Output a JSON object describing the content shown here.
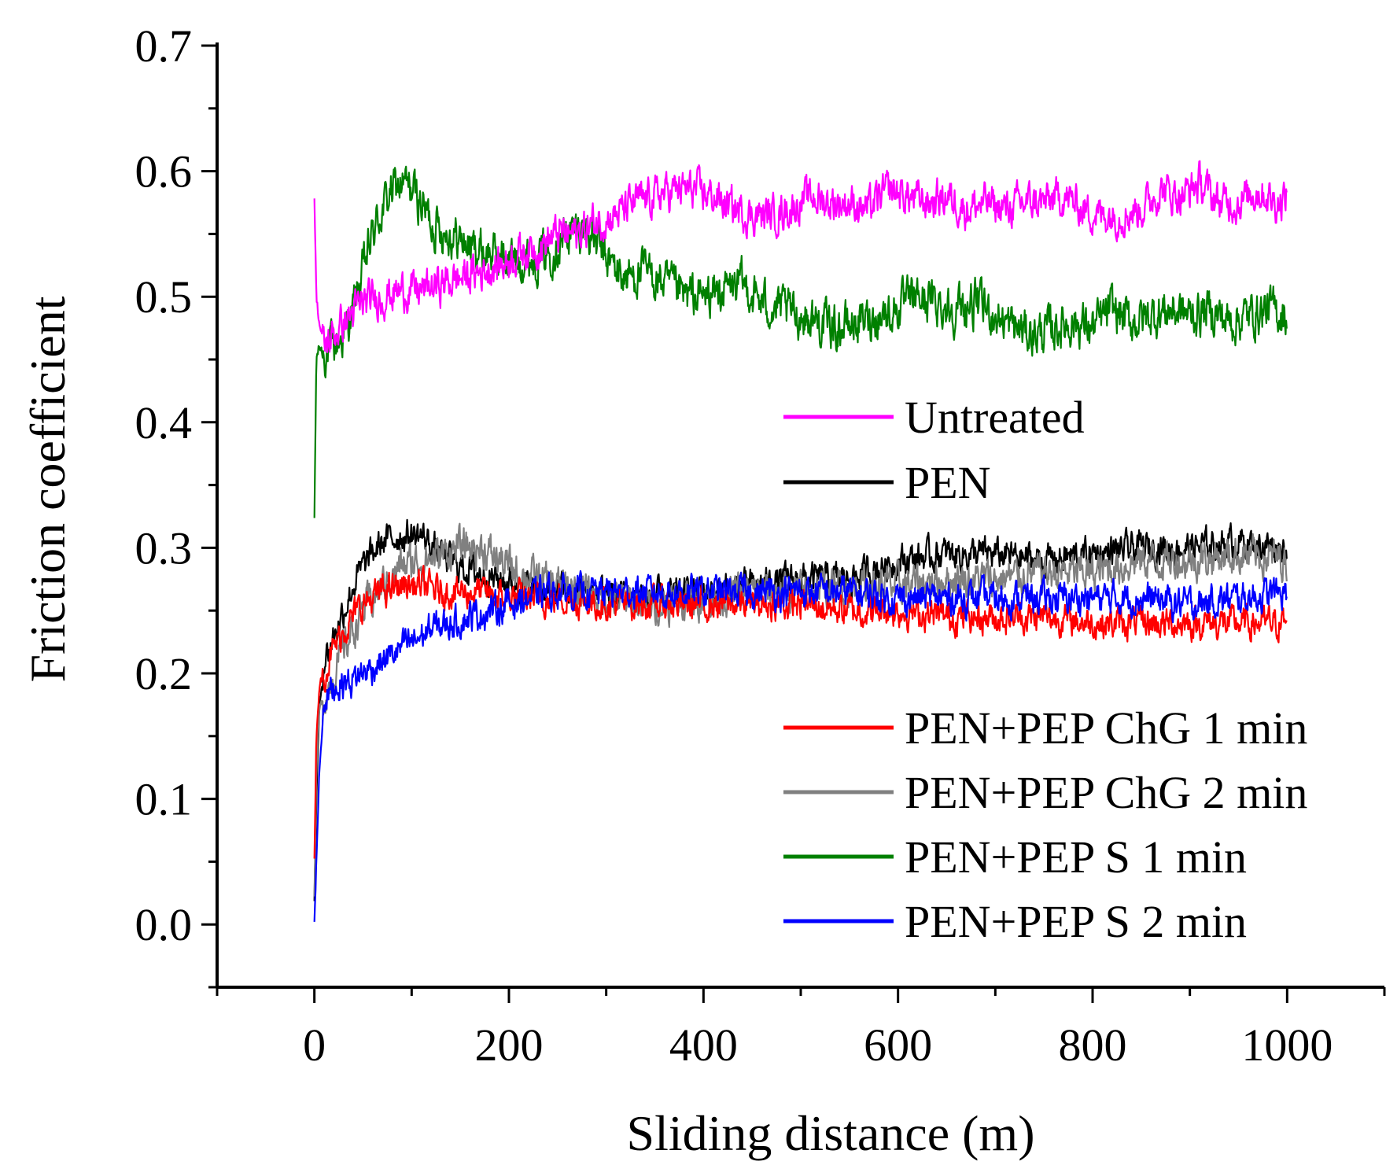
{
  "chart_data": {
    "type": "line",
    "xlabel": "Sliding distance (m)",
    "ylabel": "Friction coefficient",
    "xlim": [
      -100,
      1100
    ],
    "ylim": [
      -0.05,
      0.7
    ],
    "x_ticks": [
      0,
      200,
      400,
      600,
      800,
      1000
    ],
    "x_tick_labels": [
      "0",
      "200",
      "400",
      "600",
      "800",
      "1000"
    ],
    "y_ticks": [
      0.0,
      0.1,
      0.2,
      0.3,
      0.4,
      0.5,
      0.6,
      0.7
    ],
    "y_tick_labels": [
      "0.0",
      "0.1",
      "0.2",
      "0.3",
      "0.4",
      "0.5",
      "0.6",
      "0.7"
    ],
    "grid": false,
    "legend_placement": "right, split into upper and lower groups",
    "series": [
      {
        "name": "Untreated",
        "color": "#ff00ff",
        "x": [
          0,
          2,
          5,
          10,
          20,
          30,
          50,
          70,
          90,
          110,
          130,
          150,
          170,
          190,
          210,
          230,
          250,
          270,
          290,
          310,
          330,
          350,
          370,
          390,
          410,
          430,
          450,
          470,
          490,
          510,
          530,
          550,
          570,
          590,
          610,
          630,
          650,
          670,
          690,
          710,
          730,
          750,
          770,
          790,
          810,
          830,
          850,
          870,
          890,
          910,
          930,
          950,
          970,
          990,
          1000
        ],
        "y": [
          0.58,
          0.5,
          0.48,
          0.46,
          0.47,
          0.48,
          0.495,
          0.5,
          0.505,
          0.505,
          0.51,
          0.515,
          0.52,
          0.525,
          0.535,
          0.54,
          0.55,
          0.55,
          0.56,
          0.565,
          0.575,
          0.58,
          0.585,
          0.585,
          0.58,
          0.57,
          0.565,
          0.565,
          0.57,
          0.58,
          0.575,
          0.575,
          0.57,
          0.585,
          0.58,
          0.575,
          0.58,
          0.57,
          0.575,
          0.57,
          0.575,
          0.575,
          0.58,
          0.57,
          0.565,
          0.565,
          0.57,
          0.585,
          0.58,
          0.59,
          0.575,
          0.575,
          0.585,
          0.575,
          0.58
        ],
        "noise": 0.012
      },
      {
        "name": "PEN",
        "color": "#000000",
        "x": [
          0,
          2,
          5,
          10,
          20,
          30,
          40,
          50,
          60,
          70,
          90,
          110,
          130,
          150,
          170,
          190,
          210,
          250,
          300,
          350,
          400,
          450,
          500,
          550,
          600,
          650,
          700,
          750,
          800,
          850,
          900,
          950,
          1000
        ],
        "y": [
          0.02,
          0.1,
          0.17,
          0.21,
          0.23,
          0.25,
          0.27,
          0.285,
          0.295,
          0.305,
          0.31,
          0.31,
          0.295,
          0.285,
          0.28,
          0.275,
          0.27,
          0.265,
          0.265,
          0.26,
          0.265,
          0.27,
          0.275,
          0.275,
          0.29,
          0.295,
          0.295,
          0.29,
          0.295,
          0.3,
          0.3,
          0.305,
          0.3
        ],
        "noise": 0.01
      },
      {
        "name": "PEN+PEP ChG 1 min",
        "color": "#ff0000",
        "x": [
          0,
          2,
          5,
          10,
          20,
          30,
          40,
          50,
          70,
          90,
          110,
          130,
          150,
          170,
          190,
          210,
          250,
          300,
          350,
          400,
          450,
          500,
          550,
          600,
          650,
          700,
          750,
          800,
          850,
          900,
          950,
          1000
        ],
        "y": [
          0.05,
          0.15,
          0.19,
          0.2,
          0.22,
          0.235,
          0.245,
          0.255,
          0.265,
          0.27,
          0.27,
          0.265,
          0.265,
          0.265,
          0.26,
          0.26,
          0.26,
          0.255,
          0.255,
          0.255,
          0.255,
          0.255,
          0.25,
          0.25,
          0.245,
          0.245,
          0.245,
          0.24,
          0.24,
          0.24,
          0.24,
          0.24
        ],
        "noise": 0.01
      },
      {
        "name": "PEN+PEP ChG 2 min",
        "color": "#808080",
        "x": [
          0,
          2,
          5,
          10,
          20,
          30,
          40,
          50,
          70,
          90,
          110,
          130,
          150,
          170,
          190,
          210,
          250,
          300,
          350,
          400,
          450,
          500,
          550,
          600,
          650,
          700,
          750,
          800,
          850,
          900,
          950,
          1000
        ],
        "y": [
          0.02,
          0.12,
          0.17,
          0.18,
          0.2,
          0.22,
          0.235,
          0.25,
          0.27,
          0.285,
          0.29,
          0.295,
          0.3,
          0.3,
          0.29,
          0.28,
          0.27,
          0.26,
          0.255,
          0.26,
          0.265,
          0.265,
          0.27,
          0.27,
          0.275,
          0.275,
          0.28,
          0.28,
          0.29,
          0.29,
          0.295,
          0.29
        ],
        "noise": 0.012
      },
      {
        "name": "PEN+PEP S 1 min",
        "color": "#008000",
        "x": [
          0,
          2,
          5,
          10,
          20,
          30,
          40,
          50,
          60,
          70,
          80,
          90,
          100,
          110,
          120,
          140,
          160,
          180,
          200,
          220,
          240,
          260,
          280,
          300,
          320,
          340,
          360,
          380,
          400,
          420,
          440,
          460,
          480,
          500,
          520,
          540,
          560,
          580,
          600,
          620,
          640,
          660,
          680,
          700,
          720,
          740,
          760,
          780,
          800,
          820,
          840,
          860,
          880,
          900,
          920,
          940,
          960,
          980,
          1000
        ],
        "y": [
          0.32,
          0.45,
          0.46,
          0.455,
          0.46,
          0.47,
          0.49,
          0.52,
          0.55,
          0.57,
          0.585,
          0.59,
          0.585,
          0.575,
          0.56,
          0.55,
          0.54,
          0.535,
          0.53,
          0.53,
          0.535,
          0.55,
          0.555,
          0.53,
          0.515,
          0.52,
          0.51,
          0.5,
          0.5,
          0.505,
          0.51,
          0.495,
          0.49,
          0.485,
          0.48,
          0.475,
          0.48,
          0.485,
          0.49,
          0.5,
          0.495,
          0.49,
          0.495,
          0.485,
          0.475,
          0.47,
          0.475,
          0.48,
          0.475,
          0.49,
          0.48,
          0.485,
          0.49,
          0.485,
          0.49,
          0.48,
          0.485,
          0.49,
          0.485
        ],
        "noise": 0.014
      },
      {
        "name": "PEN+PEP S 2 min",
        "color": "#0000ff",
        "x": [
          0,
          2,
          5,
          10,
          15,
          20,
          40,
          60,
          80,
          100,
          120,
          140,
          160,
          180,
          200,
          220,
          240,
          260,
          300,
          350,
          400,
          450,
          500,
          550,
          600,
          650,
          700,
          750,
          800,
          850,
          900,
          950,
          1000
        ],
        "y": [
          0.0,
          0.05,
          0.12,
          0.18,
          0.185,
          0.19,
          0.195,
          0.205,
          0.215,
          0.225,
          0.235,
          0.24,
          0.245,
          0.25,
          0.255,
          0.26,
          0.265,
          0.265,
          0.265,
          0.265,
          0.265,
          0.265,
          0.265,
          0.265,
          0.26,
          0.26,
          0.26,
          0.26,
          0.26,
          0.26,
          0.255,
          0.26,
          0.265
        ],
        "noise": 0.01
      }
    ]
  }
}
